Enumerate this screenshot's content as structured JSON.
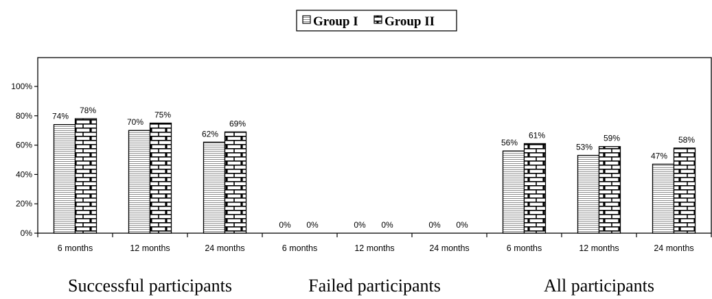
{
  "chart_data": {
    "type": "bar",
    "title": "",
    "xlabel": "",
    "ylabel": "",
    "ylim": [
      0,
      100
    ],
    "yticks": [
      0,
      20,
      40,
      60,
      80,
      100
    ],
    "ytick_labels": [
      "0%",
      "20%",
      "40%",
      "60%",
      "80%",
      "100%"
    ],
    "value_suffix": "%",
    "legend_position": "top-center",
    "grid": false,
    "categories": [
      "6 months",
      "12 months",
      "24 months",
      "6 months",
      "12 months",
      "24 months",
      "6 months",
      "12 months",
      "24 months"
    ],
    "groups": [
      {
        "label": "Successful participants",
        "span": [
          0,
          2
        ]
      },
      {
        "label": "Failed participants",
        "span": [
          3,
          5
        ]
      },
      {
        "label": "All participants",
        "span": [
          6,
          8
        ]
      }
    ],
    "series": [
      {
        "name": "Group I",
        "pattern": "horizontal-lines",
        "values": [
          74,
          70,
          62,
          0,
          0,
          0,
          56,
          53,
          47
        ]
      },
      {
        "name": "Group II",
        "pattern": "brick",
        "values": [
          78,
          75,
          69,
          0,
          0,
          0,
          61,
          59,
          58
        ]
      }
    ]
  }
}
